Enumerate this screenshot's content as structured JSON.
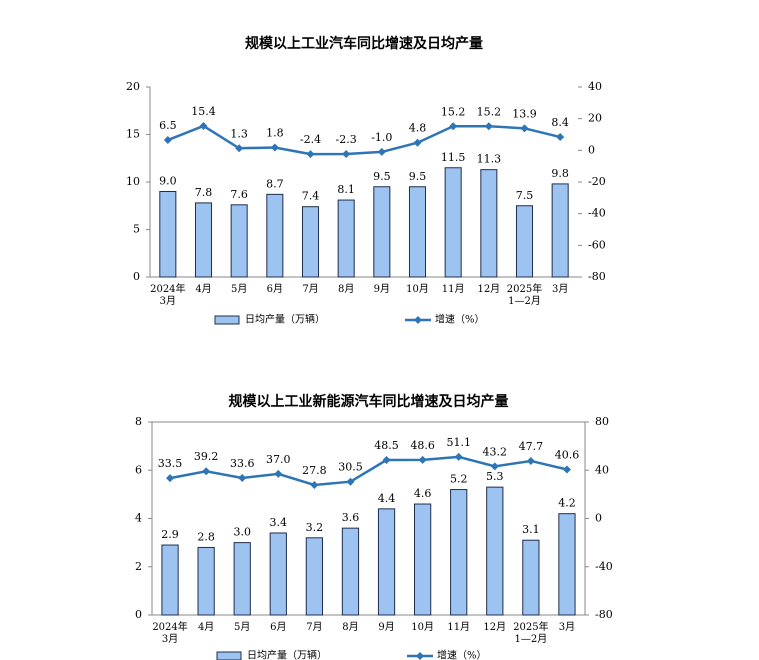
{
  "chart_data": [
    {
      "type": "bar",
      "title": "规模以上工业汽车同比增速及日均产量",
      "categories": [
        [
          "2024年",
          "3月"
        ],
        [
          "4月"
        ],
        [
          "5月"
        ],
        [
          "6月"
        ],
        [
          "7月"
        ],
        [
          "8月"
        ],
        [
          "9月"
        ],
        [
          "10月"
        ],
        [
          "11月"
        ],
        [
          "12月"
        ],
        [
          "2025年",
          "1—2月"
        ],
        [
          "3月"
        ]
      ],
      "series": [
        {
          "name": "日均产量（万辆）",
          "type": "bar",
          "color": "#9dc3f0",
          "values": [
            9.0,
            7.8,
            7.6,
            8.7,
            7.4,
            8.1,
            9.5,
            9.5,
            11.5,
            11.3,
            7.5,
            9.8
          ],
          "value_labels": [
            "9.0",
            "7.8",
            "7.6",
            "8.7",
            "7.4",
            "8.1",
            "9.5",
            "9.5",
            "11.5",
            "11.3",
            "7.5",
            "9.8"
          ]
        },
        {
          "name": "增速（%）",
          "type": "line",
          "axis": "y2",
          "color": "#2e75b6",
          "values": [
            6.5,
            15.4,
            1.3,
            1.8,
            -2.4,
            -2.3,
            -1.0,
            4.8,
            15.2,
            15.2,
            13.9,
            8.4
          ],
          "value_labels": [
            "6.5",
            "15.4",
            "1.3",
            "1.8",
            "-2.4",
            "-2.3",
            "-1.0",
            "4.8",
            "15.2",
            "15.2",
            "13.9",
            "8.4"
          ]
        }
      ],
      "ylim": [
        0,
        20
      ],
      "yticks": [
        0,
        5,
        10,
        15,
        20
      ],
      "y2lim": [
        -80,
        40
      ],
      "y2ticks": [
        -80,
        -60,
        -40,
        -20,
        0,
        20,
        40
      ]
    },
    {
      "type": "bar",
      "title": "规模以上工业新能源汽车同比增速及日均产量",
      "categories": [
        [
          "2024年",
          "3月"
        ],
        [
          "4月"
        ],
        [
          "5月"
        ],
        [
          "6月"
        ],
        [
          "7月"
        ],
        [
          "8月"
        ],
        [
          "9月"
        ],
        [
          "10月"
        ],
        [
          "11月"
        ],
        [
          "12月"
        ],
        [
          "2025年",
          "1—2月"
        ],
        [
          "3月"
        ]
      ],
      "series": [
        {
          "name": "日均产量（万辆）",
          "type": "bar",
          "color": "#9dc3f0",
          "values": [
            2.9,
            2.8,
            3.0,
            3.4,
            3.2,
            3.6,
            4.4,
            4.6,
            5.2,
            5.3,
            3.1,
            4.2
          ],
          "value_labels": [
            "2.9",
            "2.8",
            "3.0",
            "3.4",
            "3.2",
            "3.6",
            "4.4",
            "4.6",
            "5.2",
            "5.3",
            "3.1",
            "4.2"
          ]
        },
        {
          "name": "增速（%）",
          "type": "line",
          "axis": "y2",
          "color": "#2e75b6",
          "values": [
            33.5,
            39.2,
            33.6,
            37.0,
            27.8,
            30.5,
            48.5,
            48.6,
            51.1,
            43.2,
            47.7,
            40.6
          ],
          "value_labels": [
            "33.5",
            "39.2",
            "33.6",
            "37.0",
            "27.8",
            "30.5",
            "48.5",
            "48.6",
            "51.1",
            "43.2",
            "47.7",
            "40.6"
          ]
        }
      ],
      "ylim": [
        0,
        8
      ],
      "yticks": [
        0,
        2,
        4,
        6,
        8
      ],
      "y2lim": [
        -80,
        80
      ],
      "y2ticks": [
        -80,
        -40,
        0,
        40,
        80
      ]
    }
  ]
}
